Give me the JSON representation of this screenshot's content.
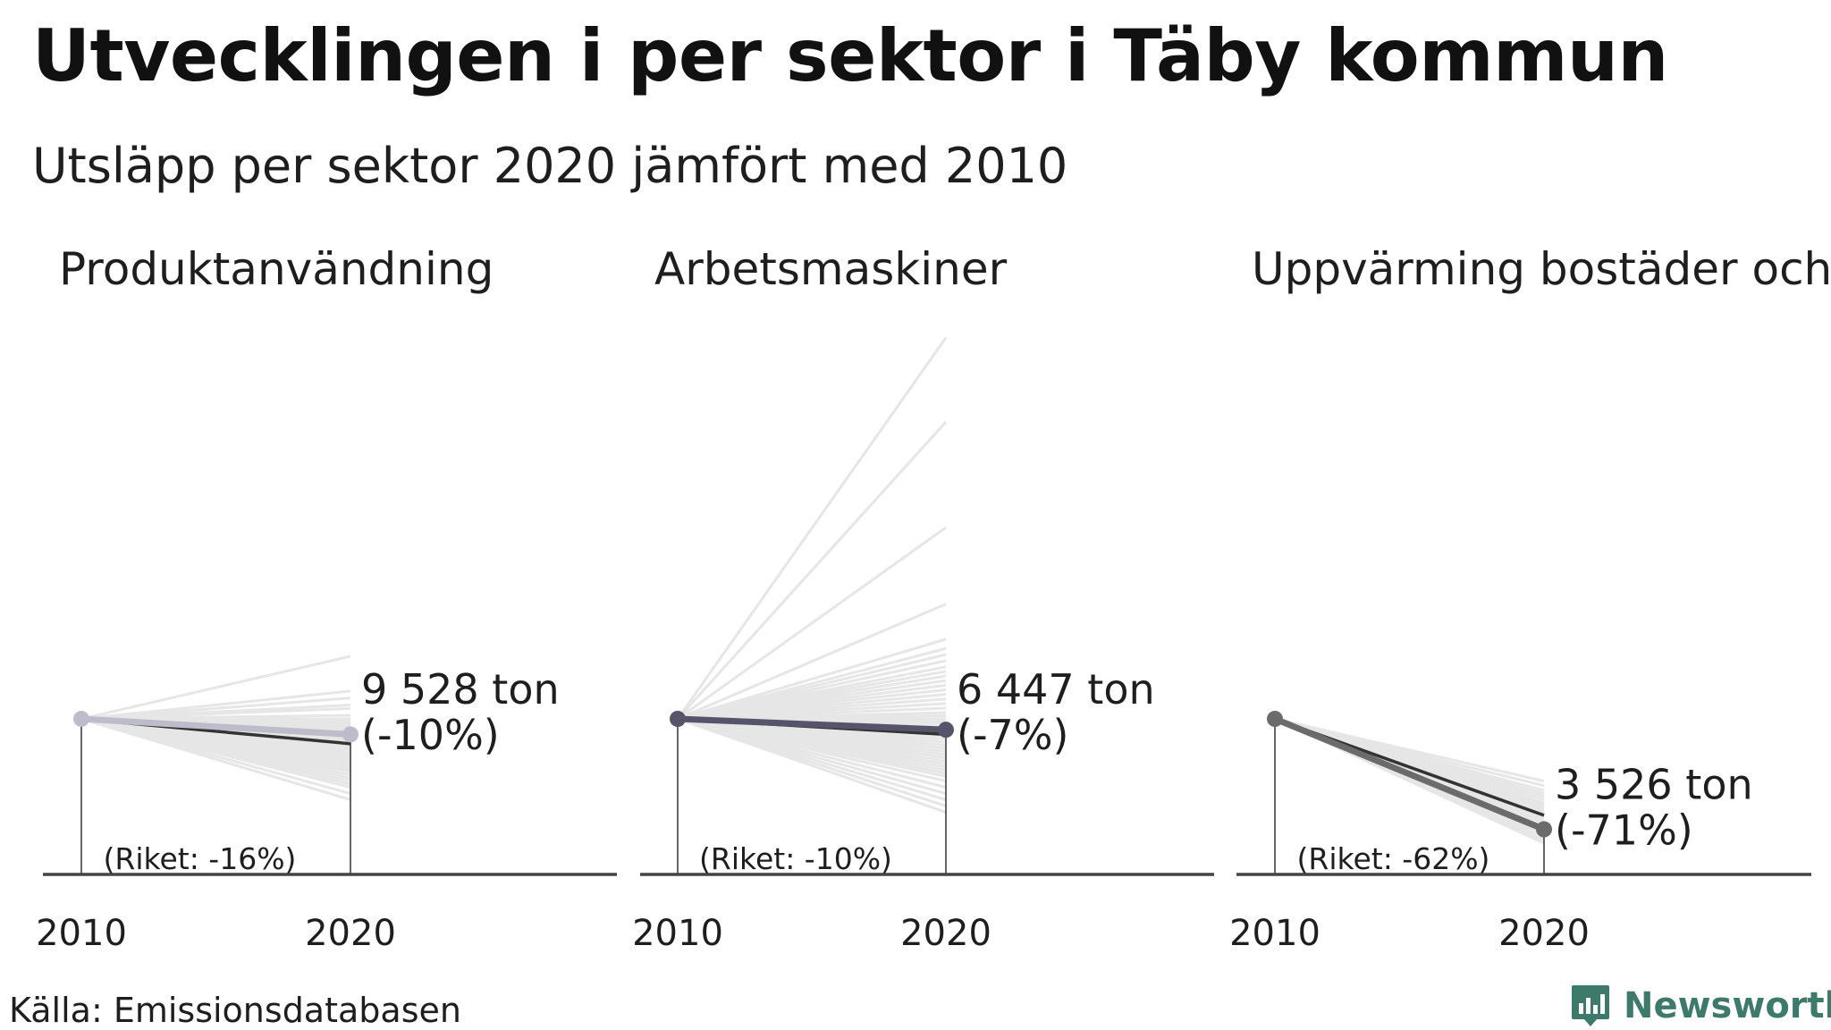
{
  "title": "Utvecklingen i per sektor i Täby kommun",
  "subtitle": "Utsläpp per sektor 2020 jämfört med 2010",
  "source": "Källa: Emissionsdatabasen",
  "brand": {
    "name": "Newsworthy",
    "icon": "newsworthy-logo-icon",
    "color": "#3e7a6b"
  },
  "chart_data": [
    {
      "type": "line",
      "title": "Produktanvändning",
      "x": [
        "2010",
        "2020"
      ],
      "highlight": {
        "change_pct": -10,
        "value_label": "9 528 ton",
        "change_label": "(-10%)",
        "color": "#bdbccb"
      },
      "national": {
        "change_pct": -16,
        "label": "(Riket: -16%)",
        "color": "#333333"
      },
      "other_municipalities_change_pct": [
        18,
        8,
        6,
        4,
        3,
        1,
        0,
        -1,
        -2,
        -3,
        -4,
        -5,
        -6,
        -7,
        -8,
        -9,
        -10,
        -11,
        -12,
        -13,
        -14,
        -15,
        -16,
        -17,
        -18,
        -19,
        -20,
        -21,
        -22,
        -23,
        -24,
        -25,
        -26,
        -27,
        -28,
        -29,
        -30,
        -31,
        -32,
        -33,
        -34,
        -36,
        -38,
        -40,
        -42,
        -44,
        -48,
        -52
      ],
      "y_scale": {
        "baseline_pct": -100,
        "max_pct": 110
      }
    },
    {
      "type": "line",
      "title": "Arbetsmaskiner",
      "x": [
        "2010",
        "2020"
      ],
      "highlight": {
        "change_pct": -7,
        "value_label": "6 447 ton",
        "change_label": "(-7%)",
        "color": "#55546a"
      },
      "national": {
        "change_pct": -10,
        "label": "(Riket: -10%)",
        "color": "#333333"
      },
      "other_municipalities_change_pct": [
        249,
        194,
        125,
        75,
        52,
        46,
        42,
        38,
        34,
        31,
        28,
        25,
        22,
        19,
        16,
        13,
        10,
        7,
        4,
        2,
        0,
        -1,
        -2,
        -3,
        -5,
        -7,
        -9,
        -11,
        -13,
        -15,
        -17,
        -19,
        -21,
        -23,
        -25,
        -27,
        -29,
        -31,
        -33,
        -35,
        -37,
        -40,
        -44,
        -48,
        -52,
        -56,
        -60
      ],
      "y_scale": {
        "baseline_pct": -100,
        "max_pct": 250
      }
    },
    {
      "type": "line",
      "title": "Uppvärming bostäder och",
      "x": [
        "2010",
        "2020"
      ],
      "highlight": {
        "change_pct": -71,
        "value_label": "3 526 ton",
        "change_label": "(-71%)",
        "color": "#6b6b6b"
      },
      "national": {
        "change_pct": -62,
        "label": "(Riket: -62%)",
        "color": "#333333"
      },
      "other_municipalities_change_pct": [
        -40,
        -43,
        -46,
        -48,
        -50,
        -52,
        -54,
        -55,
        -56,
        -57,
        -58,
        -59,
        -60,
        -61,
        -62,
        -63,
        -64,
        -65,
        -66,
        -67,
        -68,
        -69,
        -70,
        -72,
        -74,
        -76,
        -78,
        -80
      ],
      "y_scale": {
        "baseline_pct": -100,
        "max_pct": 110
      }
    }
  ]
}
